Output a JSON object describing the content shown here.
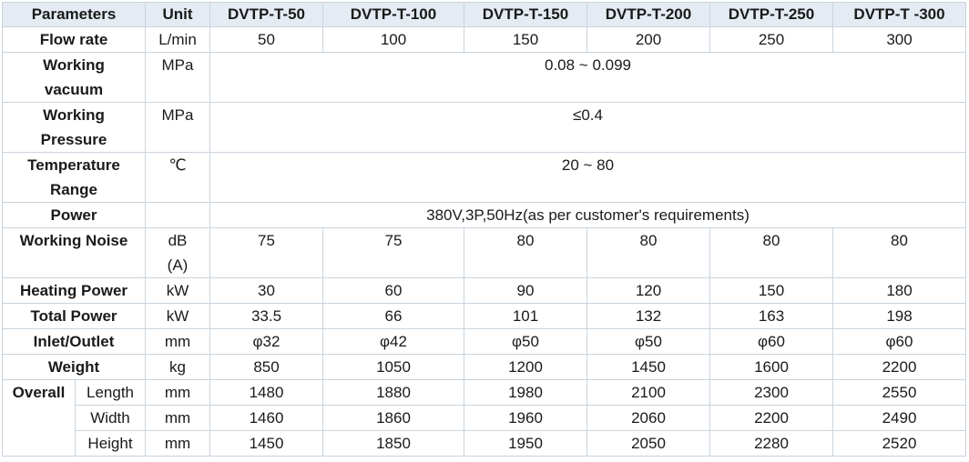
{
  "header": {
    "parameters": "Parameters",
    "unit": "Unit",
    "models": [
      "DVTP-T-50",
      "DVTP-T-100",
      "DVTP-T-150",
      "DVTP-T-200",
      "DVTP-T-250",
      "DVTP-T -300"
    ]
  },
  "rows": {
    "flow_rate": {
      "label": "Flow rate",
      "unit": "L/min",
      "values": [
        "50",
        "100",
        "150",
        "200",
        "250",
        "300"
      ]
    },
    "working_vacuum": {
      "label_1": "Working",
      "label_2": "vacuum",
      "unit": "MPa",
      "value": "0.08 ~ 0.099"
    },
    "working_pressure": {
      "label_1": "Working",
      "label_2": "Pressure",
      "unit": "MPa",
      "value": "≤0.4"
    },
    "temperature_range": {
      "label_1": "Temperature",
      "label_2": "Range",
      "unit": "℃",
      "value": "20 ~ 80"
    },
    "power": {
      "label": "Power",
      "unit": "",
      "value": "380V,3P,50Hz(as per customer's requirements)"
    },
    "working_noise": {
      "label": "Working Noise",
      "unit_1": "dB",
      "unit_2": "(A)",
      "values": [
        "75",
        "75",
        "80",
        "80",
        "80",
        "80"
      ]
    },
    "heating_power": {
      "label": "Heating Power",
      "unit": "kW",
      "values": [
        "30",
        "60",
        "90",
        "120",
        "150",
        "180"
      ]
    },
    "total_power": {
      "label": "Total Power",
      "unit": "kW",
      "values": [
        "33.5",
        "66",
        "101",
        "132",
        "163",
        "198"
      ]
    },
    "inlet_outlet": {
      "label": "Inlet/Outlet",
      "unit": "mm",
      "values": [
        "φ32",
        "φ42",
        "φ50",
        "φ50",
        "φ60",
        "φ60"
      ]
    },
    "weight": {
      "label": "Weight",
      "unit": "kg",
      "values": [
        "850",
        "1050",
        "1200",
        "1450",
        "1600",
        "2200"
      ]
    },
    "overall": {
      "label": "Overall",
      "length": {
        "label": "Length",
        "unit": "mm",
        "values": [
          "1480",
          "1880",
          "1980",
          "2100",
          "2300",
          "2550"
        ]
      },
      "width": {
        "label": "Width",
        "unit": "mm",
        "values": [
          "1460",
          "1860",
          "1960",
          "2060",
          "2200",
          "2490"
        ]
      },
      "height": {
        "label": "Height",
        "unit": "mm",
        "values": [
          "1450",
          "1850",
          "1950",
          "2050",
          "2280",
          "2520"
        ]
      }
    }
  }
}
